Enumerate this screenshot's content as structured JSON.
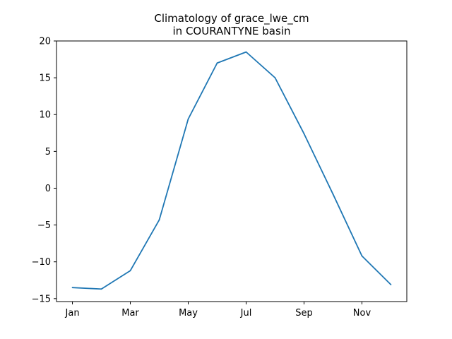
{
  "chart_data": {
    "type": "line",
    "title_lines": [
      "Climatology of grace_lwe_cm",
      "in COURANTYNE basin"
    ],
    "xlabel": "",
    "ylabel": "",
    "x": [
      1,
      2,
      3,
      4,
      5,
      6,
      7,
      8,
      9,
      10,
      11,
      12
    ],
    "x_tick_values": [
      1,
      3,
      5,
      7,
      9,
      11
    ],
    "x_tick_labels": [
      "Jan",
      "Mar",
      "May",
      "Jul",
      "Sep",
      "Nov"
    ],
    "xlim": [
      0.45,
      12.55
    ],
    "y_ticks": [
      -15,
      -10,
      -5,
      0,
      5,
      10,
      15,
      20
    ],
    "y_tick_labels": [
      "−15",
      "−10",
      "−5",
      "0",
      "5",
      "10",
      "15",
      "20"
    ],
    "ylim": [
      -15.4,
      20.0
    ],
    "grid": false,
    "series": [
      {
        "color": "#1f77b4",
        "values": [
          -13.5,
          -13.7,
          -11.2,
          -4.3,
          9.4,
          17.0,
          18.5,
          15.0,
          7.4,
          -0.8,
          -9.2,
          -13.1
        ]
      }
    ]
  }
}
